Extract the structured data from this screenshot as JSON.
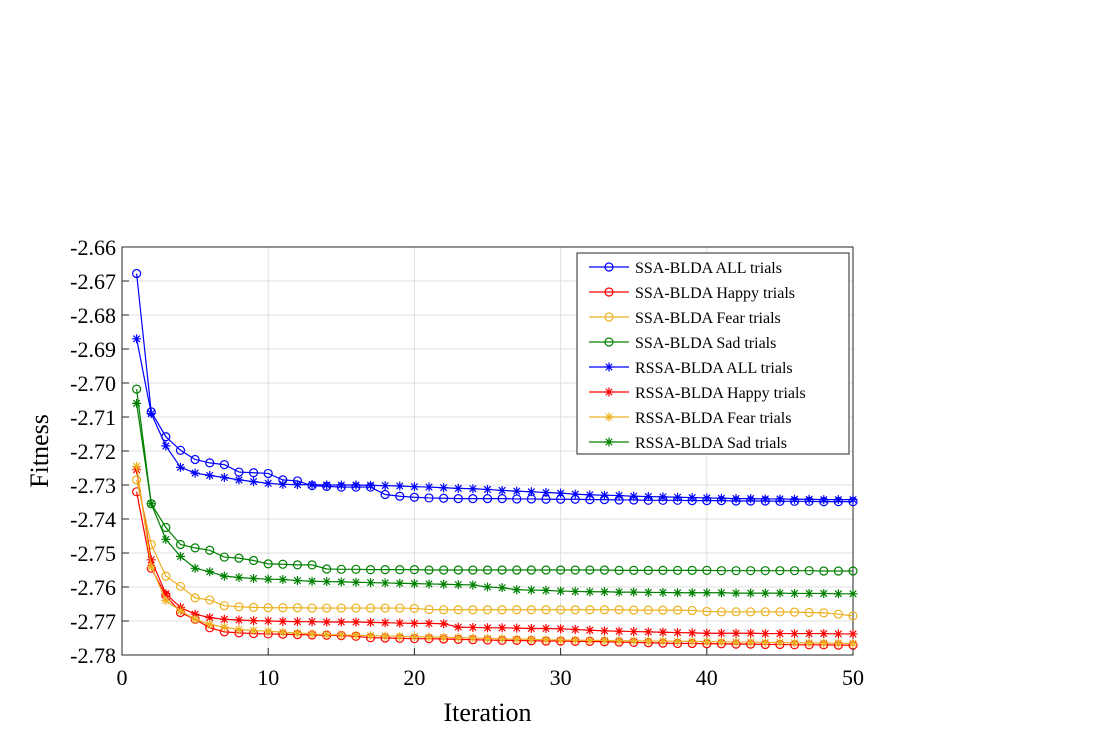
{
  "chart_data": {
    "type": "line",
    "title": "",
    "xlabel": "Iteration",
    "ylabel": "Fitness",
    "xlim": [
      0,
      50
    ],
    "ylim": [
      -2.78,
      -2.66
    ],
    "xticks": [
      0,
      10,
      20,
      30,
      40,
      50
    ],
    "xtick_labels": [
      "0",
      "10",
      "20",
      "30",
      "40",
      "50"
    ],
    "yticks": [
      -2.66,
      -2.67,
      -2.68,
      -2.69,
      -2.7,
      -2.71,
      -2.72,
      -2.73,
      -2.74,
      -2.75,
      -2.76,
      -2.77,
      -2.78
    ],
    "ytick_labels": [
      "-2.66",
      "-2.67",
      "-2.68",
      "-2.69",
      "-2.70",
      "-2.71",
      "-2.72",
      "-2.73",
      "-2.74",
      "-2.75",
      "-2.76",
      "-2.77",
      "-2.78"
    ],
    "grid": true,
    "legend_position": "top-right",
    "x": [
      1,
      2,
      3,
      4,
      5,
      6,
      7,
      8,
      9,
      10,
      11,
      12,
      13,
      14,
      15,
      16,
      17,
      18,
      19,
      20,
      21,
      22,
      23,
      24,
      25,
      26,
      27,
      28,
      29,
      30,
      31,
      32,
      33,
      34,
      35,
      36,
      37,
      38,
      39,
      40,
      41,
      42,
      43,
      44,
      45,
      46,
      47,
      48,
      49,
      50
    ],
    "series": [
      {
        "name": "SSA-BLDA ALL trials",
        "color": "#0000ff",
        "marker": "circle",
        "values": [
          -2.6678,
          -2.7085,
          -2.7158,
          -2.7198,
          -2.7225,
          -2.7235,
          -2.724,
          -2.7262,
          -2.7264,
          -2.7266,
          -2.7285,
          -2.7288,
          -2.7302,
          -2.7304,
          -2.7306,
          -2.7306,
          -2.7306,
          -2.7328,
          -2.7333,
          -2.7336,
          -2.7338,
          -2.7339,
          -2.734,
          -2.734,
          -2.734,
          -2.734,
          -2.7341,
          -2.7341,
          -2.7342,
          -2.7342,
          -2.7342,
          -2.7343,
          -2.7343,
          -2.7344,
          -2.7344,
          -2.7345,
          -2.7345,
          -2.7345,
          -2.7346,
          -2.7346,
          -2.7346,
          -2.7347,
          -2.7347,
          -2.7347,
          -2.7348,
          -2.7348,
          -2.7348,
          -2.7349,
          -2.7349,
          -2.7349
        ]
      },
      {
        "name": "SSA-BLDA Happy trials",
        "color": "#ff0000",
        "marker": "circle",
        "values": [
          -2.732,
          -2.7545,
          -2.7625,
          -2.7675,
          -2.7695,
          -2.772,
          -2.7732,
          -2.7735,
          -2.7737,
          -2.7738,
          -2.7739,
          -2.774,
          -2.7741,
          -2.7742,
          -2.7743,
          -2.7745,
          -2.7749,
          -2.775,
          -2.7751,
          -2.7752,
          -2.7752,
          -2.7753,
          -2.7754,
          -2.7755,
          -2.7756,
          -2.7757,
          -2.7757,
          -2.7758,
          -2.7759,
          -2.7759,
          -2.776,
          -2.776,
          -2.7761,
          -2.7762,
          -2.7763,
          -2.7764,
          -2.7765,
          -2.7766,
          -2.7766,
          -2.7767,
          -2.7767,
          -2.7768,
          -2.7768,
          -2.7769,
          -2.7769,
          -2.777,
          -2.777,
          -2.777,
          -2.7771,
          -2.7771
        ]
      },
      {
        "name": "SSA-BLDA Fear trials",
        "color": "#edb120",
        "marker": "circle",
        "values": [
          -2.7285,
          -2.7475,
          -2.7568,
          -2.7598,
          -2.7632,
          -2.7638,
          -2.7655,
          -2.7658,
          -2.766,
          -2.7661,
          -2.7661,
          -2.7661,
          -2.7662,
          -2.7662,
          -2.7662,
          -2.7662,
          -2.7662,
          -2.7662,
          -2.7662,
          -2.7663,
          -2.7666,
          -2.7667,
          -2.7667,
          -2.7667,
          -2.7667,
          -2.7667,
          -2.7667,
          -2.7667,
          -2.7667,
          -2.7667,
          -2.7667,
          -2.7667,
          -2.7667,
          -2.7667,
          -2.7668,
          -2.7668,
          -2.7668,
          -2.7668,
          -2.7669,
          -2.7672,
          -2.7673,
          -2.7673,
          -2.7673,
          -2.7673,
          -2.7673,
          -2.7674,
          -2.7675,
          -2.7676,
          -2.768,
          -2.7685
        ]
      },
      {
        "name": "SSA-BLDA Sad trials",
        "color": "#008000",
        "marker": "circle",
        "values": [
          -2.7018,
          -2.7355,
          -2.7425,
          -2.7475,
          -2.7485,
          -2.7492,
          -2.7512,
          -2.7515,
          -2.7522,
          -2.7532,
          -2.7533,
          -2.7535,
          -2.7535,
          -2.7547,
          -2.7548,
          -2.7548,
          -2.7549,
          -2.7549,
          -2.7549,
          -2.7549,
          -2.755,
          -2.755,
          -2.755,
          -2.755,
          -2.755,
          -2.755,
          -2.755,
          -2.755,
          -2.755,
          -2.755,
          -2.755,
          -2.755,
          -2.755,
          -2.7551,
          -2.7551,
          -2.7551,
          -2.7551,
          -2.7551,
          -2.7551,
          -2.7551,
          -2.7552,
          -2.7552,
          -2.7552,
          -2.7552,
          -2.7552,
          -2.7552,
          -2.7552,
          -2.7553,
          -2.7553,
          -2.7553
        ]
      },
      {
        "name": "RSSA-BLDA ALL trials",
        "color": "#0000ff",
        "marker": "star",
        "values": [
          -2.687,
          -2.709,
          -2.7185,
          -2.7248,
          -2.7265,
          -2.7272,
          -2.7278,
          -2.7285,
          -2.729,
          -2.7295,
          -2.7298,
          -2.7299,
          -2.7299,
          -2.73,
          -2.73,
          -2.73,
          -2.7301,
          -2.7302,
          -2.7303,
          -2.7305,
          -2.7306,
          -2.7308,
          -2.731,
          -2.7311,
          -2.7313,
          -2.7316,
          -2.7318,
          -2.732,
          -2.7322,
          -2.7324,
          -2.7327,
          -2.7329,
          -2.733,
          -2.7331,
          -2.7333,
          -2.7334,
          -2.7335,
          -2.7336,
          -2.7337,
          -2.7338,
          -2.7339,
          -2.734,
          -2.734,
          -2.7341,
          -2.7341,
          -2.7342,
          -2.7342,
          -2.7343,
          -2.7343,
          -2.7343
        ]
      },
      {
        "name": "RSSA-BLDA Happy trials",
        "color": "#ff0000",
        "marker": "star",
        "values": [
          -2.7255,
          -2.752,
          -2.762,
          -2.766,
          -2.768,
          -2.769,
          -2.7695,
          -2.7697,
          -2.7699,
          -2.77,
          -2.7701,
          -2.7702,
          -2.7702,
          -2.7703,
          -2.7703,
          -2.7703,
          -2.7704,
          -2.7705,
          -2.7706,
          -2.7707,
          -2.7707,
          -2.7708,
          -2.7718,
          -2.7719,
          -2.772,
          -2.772,
          -2.7721,
          -2.7722,
          -2.7722,
          -2.7723,
          -2.7725,
          -2.7727,
          -2.7729,
          -2.773,
          -2.7731,
          -2.7732,
          -2.7733,
          -2.7734,
          -2.7735,
          -2.7736,
          -2.7736,
          -2.7736,
          -2.7736,
          -2.7737,
          -2.7737,
          -2.7737,
          -2.7737,
          -2.7737,
          -2.7738,
          -2.7738
        ]
      },
      {
        "name": "RSSA-BLDA Fear trials",
        "color": "#edb120",
        "marker": "star",
        "values": [
          -2.7245,
          -2.754,
          -2.764,
          -2.767,
          -2.7695,
          -2.771,
          -2.7718,
          -2.7725,
          -2.7728,
          -2.773,
          -2.7733,
          -2.7735,
          -2.7738,
          -2.774,
          -2.7741,
          -2.7742,
          -2.7743,
          -2.7744,
          -2.7745,
          -2.7746,
          -2.7747,
          -2.7748,
          -2.7749,
          -2.775,
          -2.7751,
          -2.7752,
          -2.7753,
          -2.7754,
          -2.7755,
          -2.7756,
          -2.7756,
          -2.7757,
          -2.7757,
          -2.7758,
          -2.7758,
          -2.7759,
          -2.7759,
          -2.776,
          -2.776,
          -2.7761,
          -2.7761,
          -2.7762,
          -2.7762,
          -2.7763,
          -2.7763,
          -2.7764,
          -2.7764,
          -2.7765,
          -2.7765,
          -2.7766
        ]
      },
      {
        "name": "RSSA-BLDA Sad trials",
        "color": "#008000",
        "marker": "star",
        "values": [
          -2.706,
          -2.7355,
          -2.746,
          -2.751,
          -2.7545,
          -2.7555,
          -2.7568,
          -2.7572,
          -2.7575,
          -2.7577,
          -2.7578,
          -2.7581,
          -2.7583,
          -2.7584,
          -2.7585,
          -2.7586,
          -2.7587,
          -2.7588,
          -2.7589,
          -2.759,
          -2.7591,
          -2.7592,
          -2.7593,
          -2.7594,
          -2.76,
          -2.7602,
          -2.7608,
          -2.7609,
          -2.761,
          -2.7612,
          -2.7613,
          -2.7614,
          -2.7614,
          -2.7615,
          -2.7615,
          -2.7616,
          -2.7616,
          -2.7617,
          -2.7617,
          -2.7617,
          -2.7617,
          -2.7618,
          -2.7618,
          -2.7618,
          -2.7618,
          -2.7619,
          -2.7619,
          -2.7619,
          -2.762,
          -2.762
        ]
      }
    ]
  }
}
